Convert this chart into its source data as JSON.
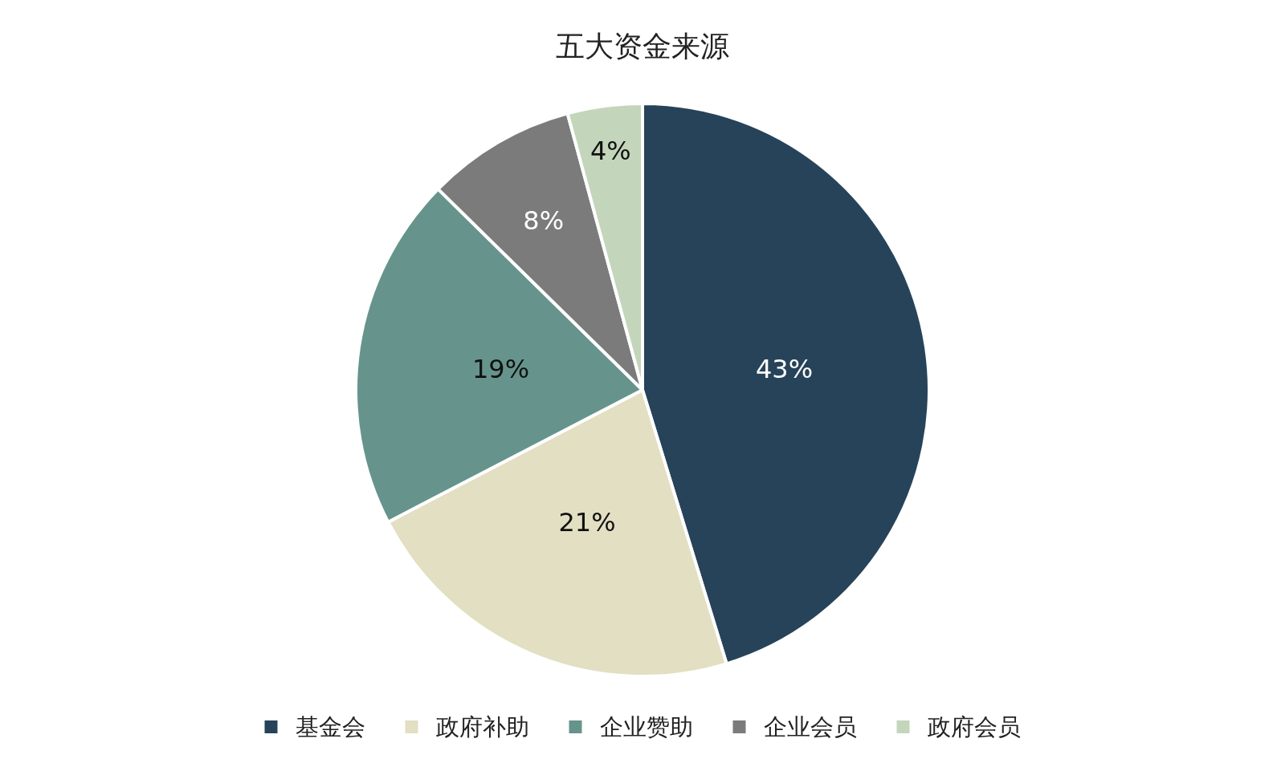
{
  "chart_data": {
    "type": "pie",
    "title": "五大资金来源",
    "categories": [
      "基金会",
      "政府补助",
      "企业赞助",
      "企业会员",
      "政府会员"
    ],
    "values": [
      43,
      21,
      19,
      8,
      4
    ],
    "colors": [
      "#27435a",
      "#e2dfc2",
      "#66948c",
      "#7b7b7b",
      "#c3d6bb"
    ],
    "value_labels": [
      "43%",
      "21%",
      "19%",
      "8%",
      "4%"
    ],
    "legend": "bottom"
  }
}
